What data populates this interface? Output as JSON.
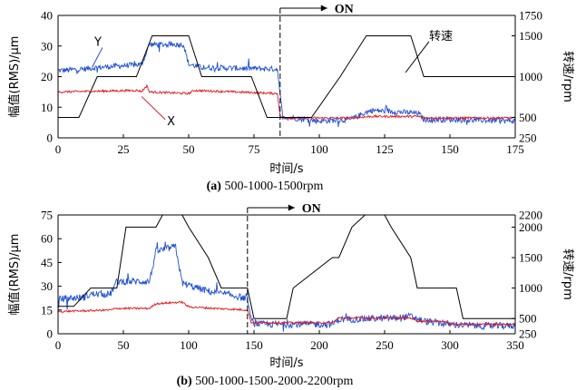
{
  "chart_data": [
    {
      "type": "line",
      "caption": "(a) 500-1000-1500rpm",
      "caption_letter": "(a)",
      "caption_rest": " 500-1000-1500rpm",
      "xlabel": "时间/s",
      "ylabel": "幅值(RMS)/μm",
      "y2label": "转速/rpm",
      "xlim": [
        0,
        175
      ],
      "ylim": [
        0,
        40
      ],
      "y2lim": [
        250,
        1750
      ],
      "xticks": [
        0,
        25,
        50,
        75,
        100,
        125,
        150,
        175
      ],
      "yticks": [
        0,
        10,
        20,
        30,
        40
      ],
      "y2ticks": [
        250,
        500,
        1000,
        1500,
        1750
      ],
      "on_marker": {
        "x": 85,
        "label": "ON"
      },
      "annotations": [
        {
          "text": "Y",
          "series": "Y",
          "at": [
            17,
            29.5
          ],
          "to": [
            13,
            23
          ]
        },
        {
          "text": "X",
          "series": "X",
          "at": [
            41,
            6
          ],
          "to": [
            32,
            13.5
          ]
        },
        {
          "text": "转速",
          "series": "speed",
          "at": [
            142,
            1430
          ],
          "to": [
            133,
            1050
          ]
        }
      ],
      "series": [
        {
          "name": "Y",
          "axis": "left",
          "color": "#1f4fd6",
          "noise": 0.9,
          "x": [
            0,
            10,
            15,
            32,
            35,
            48,
            50,
            55,
            84,
            85,
            86,
            90,
            100,
            112,
            117,
            120,
            130,
            138,
            140,
            150,
            175
          ],
          "y": [
            22,
            22.5,
            23,
            24,
            30.5,
            30.5,
            24,
            23,
            22.5,
            14,
            7,
            6.5,
            5.5,
            6,
            8,
            9,
            8.5,
            8,
            6,
            6,
            5.5
          ]
        },
        {
          "name": "X",
          "axis": "left",
          "color": "#e8151b",
          "noise": 0.35,
          "x": [
            0,
            30,
            32,
            34,
            35,
            50,
            52,
            84,
            85,
            86,
            100,
            112,
            120,
            138,
            140,
            175
          ],
          "y": [
            15,
            15.5,
            15.2,
            17,
            15,
            14.5,
            15.5,
            14.5,
            7,
            6.5,
            6.5,
            6.5,
            7,
            7,
            6.5,
            6.5
          ]
        },
        {
          "name": "speed",
          "axis": "right",
          "color": "#000000",
          "noise": 0,
          "x": [
            0,
            8,
            15,
            30,
            36,
            50,
            55,
            74,
            80,
            92,
            97,
            108,
            118,
            135,
            140,
            175
          ],
          "y": [
            500,
            500,
            1000,
            1000,
            1500,
            1500,
            1000,
            1000,
            500,
            500,
            500,
            1000,
            1500,
            1500,
            1000,
            1000
          ]
        }
      ]
    },
    {
      "type": "line",
      "caption": "(b) 500-1000-1500-2000-2200rpm",
      "caption_letter": "(b)",
      "caption_rest": " 500-1000-1500-2000-2200rpm",
      "xlabel": "时间/s",
      "ylabel": "幅值(RMS)/μm",
      "y2label": "转速/rpm",
      "xlim": [
        0,
        350
      ],
      "ylim": [
        0,
        75
      ],
      "y2lim": [
        250,
        2200
      ],
      "xticks": [
        0,
        50,
        100,
        150,
        200,
        250,
        300,
        350
      ],
      "yticks": [
        0,
        15,
        30,
        45,
        60,
        75
      ],
      "y2ticks": [
        250,
        500,
        1000,
        1500,
        2000,
        2200
      ],
      "on_marker": {
        "x": 145,
        "label": "ON"
      },
      "annotations": [],
      "series": [
        {
          "name": "Y",
          "axis": "left",
          "color": "#1f4fd6",
          "noise": 2.2,
          "x": [
            0,
            20,
            25,
            40,
            45,
            70,
            75,
            90,
            95,
            110,
            120,
            135,
            145,
            148,
            155,
            210,
            215,
            260,
            270,
            280,
            300,
            320,
            350
          ],
          "y": [
            22,
            23,
            25,
            25,
            33,
            33,
            52,
            55,
            32,
            28,
            26,
            24,
            22,
            8,
            6,
            6,
            9,
            10,
            11,
            8,
            6,
            5,
            5
          ]
        },
        {
          "name": "X",
          "axis": "left",
          "color": "#e8151b",
          "noise": 0.6,
          "x": [
            0,
            40,
            45,
            70,
            75,
            95,
            100,
            120,
            145,
            148,
            155,
            210,
            215,
            270,
            275,
            295,
            300,
            350
          ],
          "y": [
            14,
            15,
            16,
            16,
            19,
            20,
            17,
            16,
            15,
            7,
            7,
            7,
            10,
            10,
            8,
            8,
            6,
            6
          ]
        },
        {
          "name": "speed",
          "axis": "right",
          "color": "#000000",
          "noise": 0,
          "x": [
            0,
            12,
            25,
            45,
            52,
            75,
            80,
            95,
            100,
            115,
            125,
            145,
            150,
            175,
            180,
            210,
            215,
            225,
            235,
            250,
            255,
            270,
            275,
            305,
            310,
            350
          ],
          "y": [
            700,
            700,
            1000,
            1000,
            2000,
            2000,
            2200,
            2200,
            2000,
            1500,
            1000,
            1000,
            500,
            500,
            1000,
            1500,
            1500,
            2000,
            2200,
            2200,
            2000,
            1500,
            1000,
            1000,
            500,
            500
          ]
        }
      ]
    }
  ]
}
